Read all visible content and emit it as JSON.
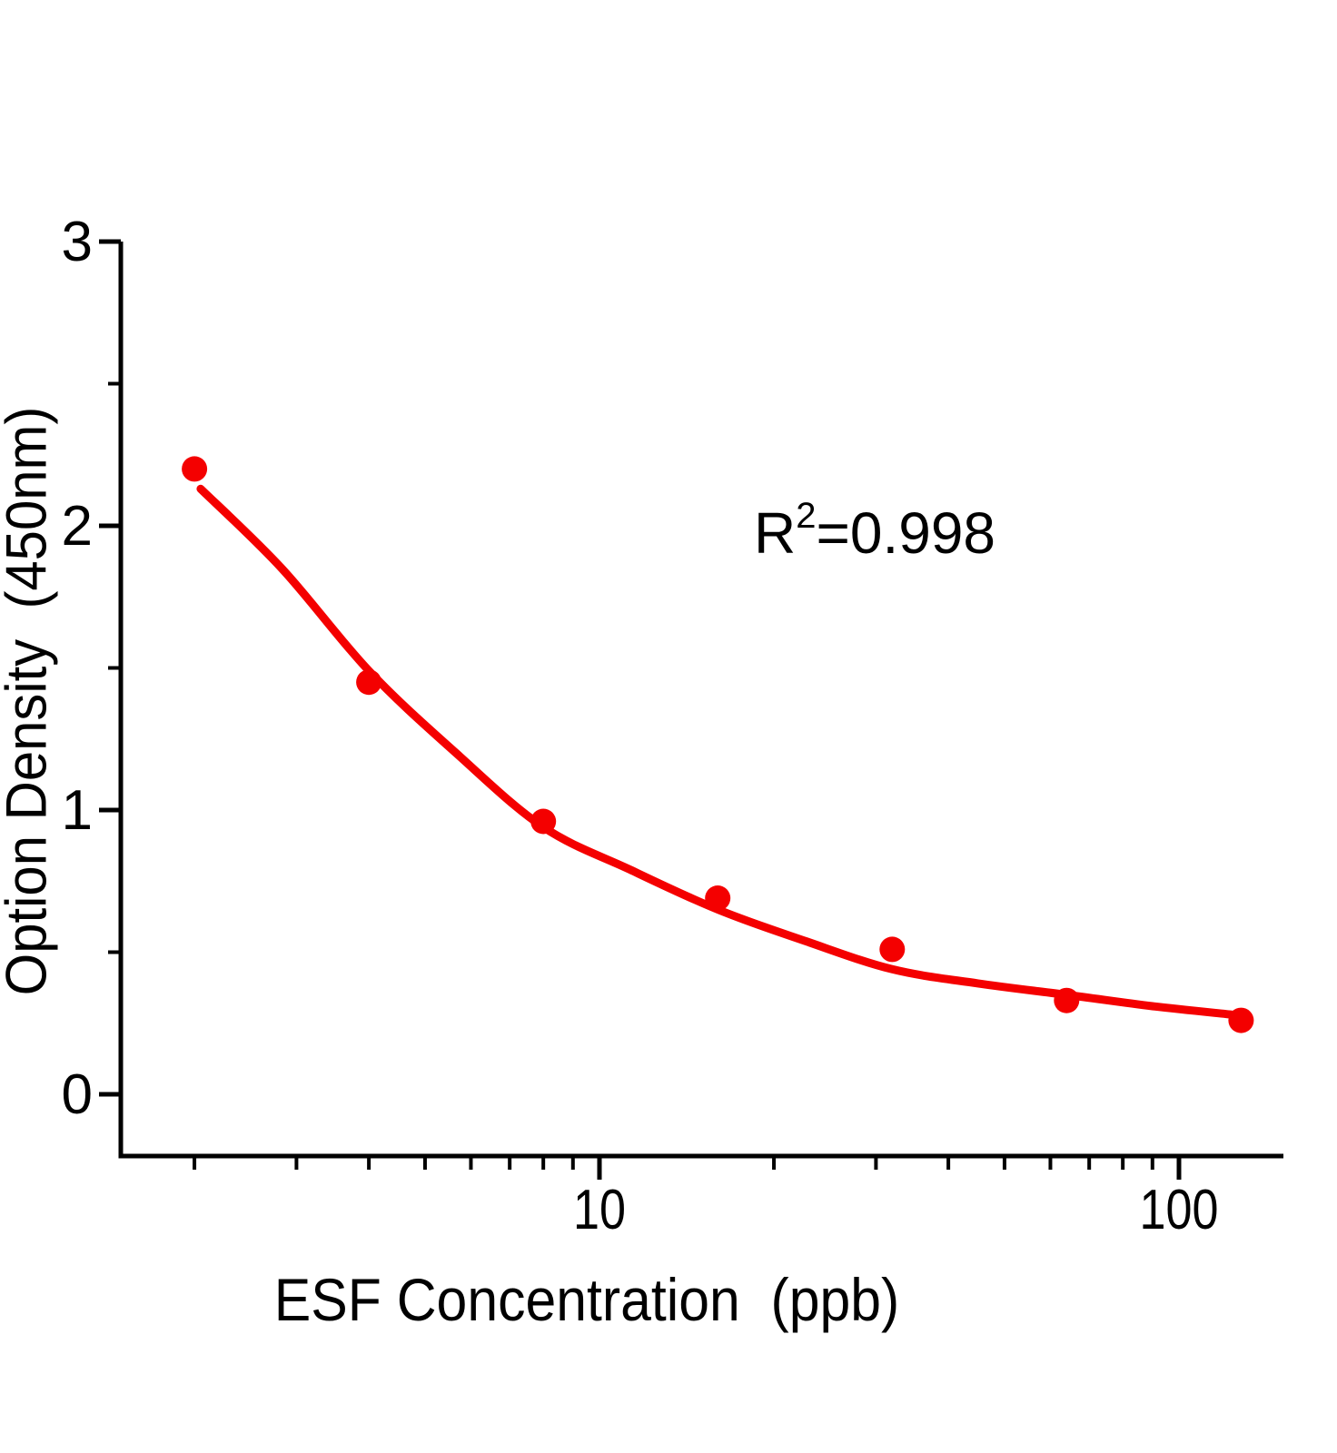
{
  "chart_data": {
    "type": "scatter",
    "x_scale": "log",
    "title": "",
    "xlabel": "ESF Concentration  (ppb)",
    "ylabel": "Option Density  (450nm)",
    "annotation": {
      "base": "R",
      "sup": "2",
      "rest": "=0.998",
      "full": "R²=0.998"
    },
    "x_axis": {
      "ticks": [
        {
          "value": 10,
          "label": "10"
        },
        {
          "value": 100,
          "label": "100"
        }
      ],
      "minor_ticks": [
        2,
        3,
        4,
        5,
        6,
        7,
        8,
        9,
        20,
        30,
        40,
        50,
        60,
        70,
        80,
        90
      ],
      "range": [
        1.49,
        151
      ]
    },
    "y_axis": {
      "ticks": [
        {
          "value": 0,
          "label": "0"
        },
        {
          "value": 1,
          "label": "1"
        },
        {
          "value": 2,
          "label": "2"
        },
        {
          "value": 3,
          "label": "3"
        }
      ],
      "minor_ticks": [
        0.5,
        1.5,
        2.5
      ],
      "range": [
        -0.22,
        3
      ]
    },
    "series": [
      {
        "name": "standard-points",
        "marker": "circle",
        "color": "#f40000",
        "points": [
          [
            2,
            2.2
          ],
          [
            4,
            1.45
          ],
          [
            8,
            0.96
          ],
          [
            16,
            0.69
          ],
          [
            32,
            0.51
          ],
          [
            64,
            0.33
          ],
          [
            128,
            0.26
          ]
        ]
      }
    ],
    "fit_curve": {
      "name": "4pl-fit-curve",
      "color": "#f40000",
      "points": [
        [
          2.05,
          2.13
        ],
        [
          2.83,
          1.85
        ],
        [
          4,
          1.49
        ],
        [
          5.66,
          1.2
        ],
        [
          8,
          0.94
        ],
        [
          11.3,
          0.79
        ],
        [
          16,
          0.65
        ],
        [
          22.6,
          0.54
        ],
        [
          32,
          0.44
        ],
        [
          45,
          0.39
        ],
        [
          64,
          0.35
        ],
        [
          90,
          0.31
        ],
        [
          124,
          0.28
        ]
      ]
    },
    "colors": {
      "data": "#f40000",
      "axis": "#000000",
      "background": "#ffffff"
    }
  }
}
